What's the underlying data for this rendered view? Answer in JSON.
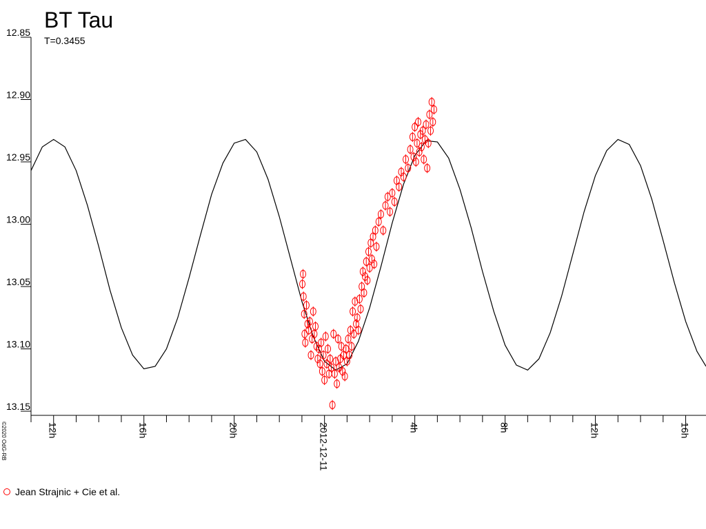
{
  "chart_data": {
    "type": "scatter",
    "title": "BT Tau",
    "subtitle": "T=0.3455",
    "copyright": "©2020 OdG-RB",
    "xlim": [
      -13,
      16.9
    ],
    "xticks": [
      {
        "value": -12,
        "label": "12h"
      },
      {
        "value": -8,
        "label": "16h"
      },
      {
        "value": -4,
        "label": "20h"
      },
      {
        "value": 0,
        "label": "2012-12-11"
      },
      {
        "value": 4,
        "label": "4h"
      },
      {
        "value": 8,
        "label": "8h"
      },
      {
        "value": 12,
        "label": "12h"
      },
      {
        "value": 16,
        "label": "16h"
      }
    ],
    "xminorticks": [
      -13,
      -11,
      -10,
      -9,
      -7,
      -6,
      -5,
      -3,
      -2,
      -1,
      1,
      2,
      3,
      5,
      6,
      7,
      9,
      10,
      11,
      13,
      14,
      15
    ],
    "ylim": [
      12.85,
      13.15
    ],
    "y_inverted": true,
    "yticks": [
      12.85,
      {
        "value": 12.9,
        "label": "12.90"
      },
      12.95,
      {
        "value": 13.0,
        "label": "13.00"
      },
      13.05,
      {
        "value": 13.1,
        "label": "13.10"
      },
      13.15
    ],
    "legend": "bottom-left",
    "series": [
      {
        "kind": "line",
        "color": "#000000",
        "x": [
          -13,
          -12.5,
          -12,
          -11.5,
          -11,
          -10.5,
          -10,
          -9.5,
          -9,
          -8.5,
          -8,
          -7.5,
          -7,
          -6.5,
          -6,
          -5.5,
          -5,
          -4.5,
          -4,
          -3.5,
          -3,
          -2.5,
          -2,
          -1.5,
          -1,
          -0.5,
          0,
          0.5,
          1,
          1.5,
          2,
          2.5,
          3,
          3.5,
          4,
          4.5,
          5,
          5.5,
          6,
          6.5,
          7,
          7.5,
          8,
          8.5,
          9,
          9.5,
          10,
          10.5,
          11,
          11.5,
          12,
          12.5,
          13,
          13.5,
          14,
          14.5,
          15,
          15.5,
          16,
          16.5,
          16.9
        ],
        "values": [
          12.957,
          12.938,
          12.932,
          12.938,
          12.957,
          12.985,
          13.018,
          13.053,
          13.083,
          13.105,
          13.116,
          13.114,
          13.1,
          13.075,
          13.043,
          13.009,
          12.976,
          12.951,
          12.935,
          12.932,
          12.942,
          12.964,
          12.994,
          13.028,
          13.062,
          13.09,
          13.11,
          13.117,
          13.112,
          13.094,
          13.067,
          13.034,
          12.999,
          12.968,
          12.945,
          12.933,
          12.934,
          12.947,
          12.972,
          13.003,
          13.038,
          13.07,
          13.097,
          13.113,
          13.117,
          13.108,
          13.087,
          13.058,
          13.024,
          12.99,
          12.961,
          12.941,
          12.932,
          12.936,
          12.953,
          12.98,
          13.013,
          13.047,
          13.078,
          13.102,
          13.114
        ]
      },
      {
        "kind": "points",
        "name": "Jean Strajnic + Cie et al.",
        "color": "#ff0000",
        "error": 0.004,
        "x": [
          -0.98,
          -0.95,
          -0.93,
          -0.9,
          -0.88,
          -0.85,
          -0.8,
          -0.75,
          -0.7,
          -0.65,
          -0.6,
          -0.55,
          -0.5,
          -0.45,
          -0.4,
          -0.35,
          -0.3,
          -0.25,
          -0.2,
          -0.15,
          -0.1,
          -0.05,
          0,
          0.05,
          0.1,
          0.15,
          0.2,
          0.25,
          0.3,
          0.35,
          0.4,
          0.45,
          0.5,
          0.55,
          0.6,
          0.65,
          0.7,
          0.75,
          0.8,
          0.85,
          0.9,
          0.95,
          1,
          1.05,
          1.1,
          1.15,
          1.2,
          1.25,
          1.3,
          1.35,
          1.4,
          1.45,
          1.5,
          1.55,
          1.6,
          1.65,
          1.7,
          1.75,
          1.8,
          1.85,
          1.9,
          1.95,
          2,
          2.05,
          2.1,
          2.15,
          2.2,
          2.25,
          2.3,
          2.4,
          2.5,
          2.6,
          2.7,
          2.8,
          2.9,
          3,
          3.1,
          3.2,
          3.3,
          3.4,
          3.5,
          3.6,
          3.7,
          3.8,
          3.9,
          3.95,
          4,
          4.05,
          4.1,
          4.15,
          4.2,
          4.25,
          4.3,
          4.35,
          4.4,
          4.45,
          4.5,
          4.55,
          4.6,
          4.65,
          4.7,
          4.75,
          4.8,
          4.85
        ],
        "values": [
          13.048,
          13.04,
          13.058,
          13.072,
          13.088,
          13.095,
          13.065,
          13.08,
          13.085,
          13.078,
          13.105,
          13.092,
          13.07,
          13.088,
          13.082,
          13.098,
          13.108,
          13.1,
          13.112,
          13.095,
          13.118,
          13.105,
          13.125,
          13.09,
          13.112,
          13.1,
          13.12,
          13.108,
          13.115,
          13.145,
          13.088,
          13.12,
          13.11,
          13.128,
          13.092,
          13.115,
          13.108,
          13.098,
          13.118,
          13.105,
          13.122,
          13.1,
          13.11,
          13.092,
          13.105,
          13.085,
          13.098,
          13.07,
          13.088,
          13.062,
          13.08,
          13.075,
          13.085,
          13.06,
          13.068,
          13.05,
          13.038,
          13.055,
          13.042,
          13.03,
          13.045,
          13.022,
          13.035,
          13.015,
          13.028,
          13.01,
          13.032,
          13.005,
          13.018,
          12.998,
          12.992,
          13.005,
          12.985,
          12.978,
          12.99,
          12.975,
          12.982,
          12.965,
          12.97,
          12.958,
          12.962,
          12.948,
          12.955,
          12.94,
          12.93,
          12.946,
          12.922,
          12.95,
          12.935,
          12.918,
          12.942,
          12.928,
          12.938,
          12.925,
          12.948,
          12.932,
          12.92,
          12.955,
          12.935,
          12.912,
          12.925,
          12.902,
          12.918,
          12.908
        ]
      }
    ]
  }
}
